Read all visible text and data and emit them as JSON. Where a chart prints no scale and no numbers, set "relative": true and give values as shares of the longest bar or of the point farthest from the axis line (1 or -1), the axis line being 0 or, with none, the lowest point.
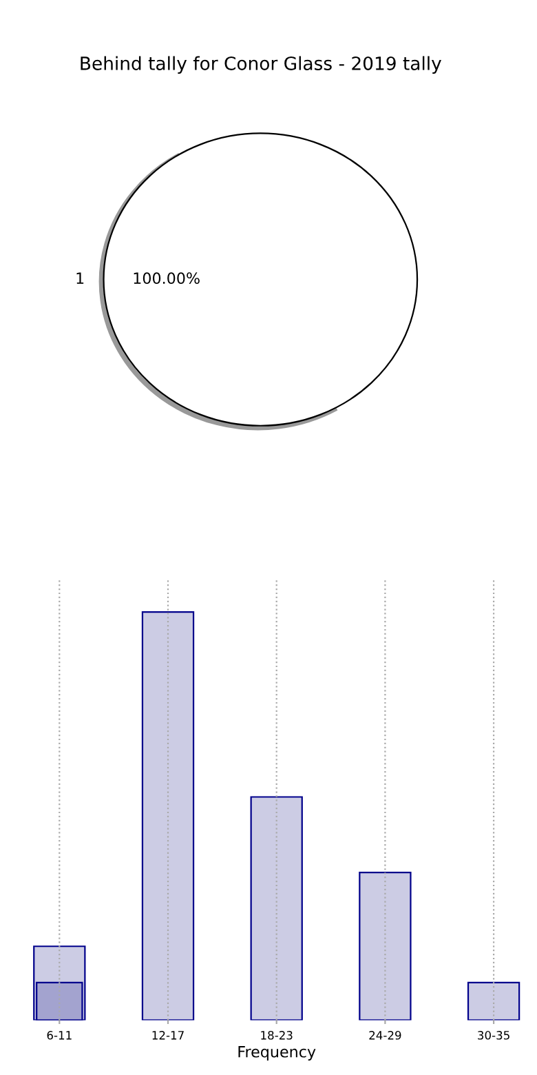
{
  "chart_data": [
    {
      "type": "pie",
      "title": "Behind tally for Conor Glass - 2019 tally",
      "categories": [
        "1"
      ],
      "values": [
        100
      ],
      "colors": [
        "#ffffff"
      ],
      "value_labels": [
        "100.00%"
      ]
    },
    {
      "type": "bar",
      "xlabel": "Frequency",
      "categories": [
        "6-11",
        "12-17",
        "18-23",
        "24-29",
        "30-35"
      ],
      "relative": true,
      "grid": "x",
      "series": [
        {
          "color": "#ccccE4",
          "values": [
            0.181,
            1,
            0.547,
            0.362,
            0.092
          ]
        },
        {
          "color": "#a3a3cf",
          "values": [
            0.092,
            null,
            null,
            null,
            null
          ]
        }
      ]
    }
  ]
}
